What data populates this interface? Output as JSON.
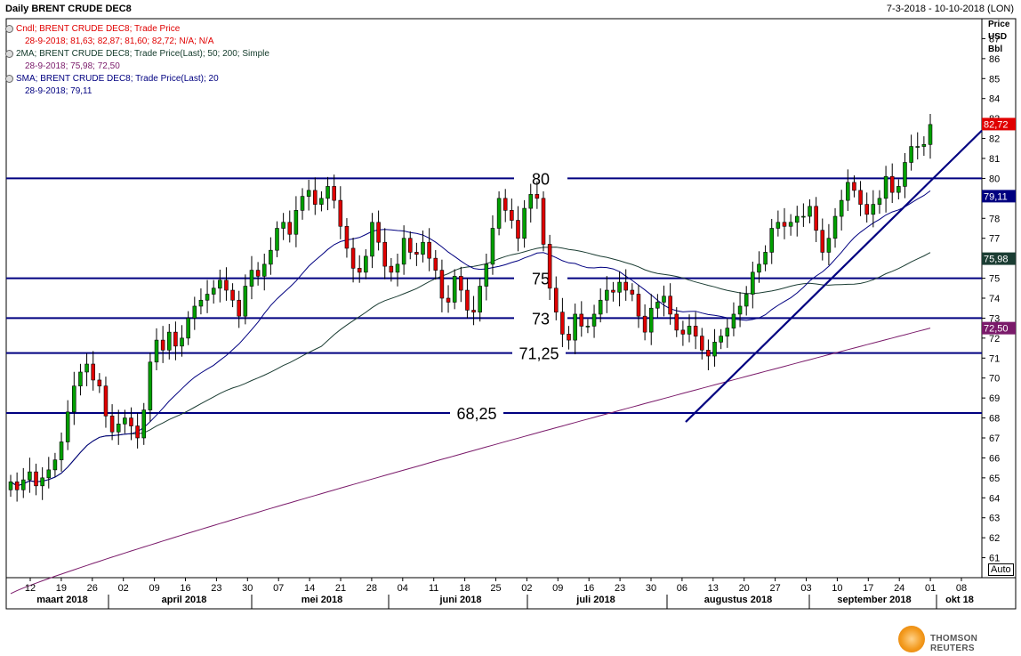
{
  "header": {
    "title": "Daily BRENT CRUDE DEC8",
    "date_range": "7-3-2018 - 10-10-2018 (LON)"
  },
  "legend": [
    {
      "label": "Cndl; BRENT CRUDE DEC8; Trade Price",
      "sub": "28-9-2018; 81,63; 82,87; 81,60; 82,72; N/A; N/A",
      "color": "#e00000"
    },
    {
      "label": "2MA; BRENT CRUDE DEC8; Trade Price(Last);  50; 200; Simple",
      "sub": "28-9-2018; 75,98; 72,50",
      "color": "#123a2a"
    },
    {
      "label": "SMA; BRENT CRUDE DEC8; Trade Price(Last);  20",
      "sub": "28-9-2018; 79,11",
      "color": "#000080"
    }
  ],
  "axis_unit": {
    "line1": "Price",
    "line2": "USD",
    "line3": "Bbl"
  },
  "auto_label": "Auto",
  "price_tags": [
    {
      "text": "82,72",
      "value": 82.72,
      "bg": "#e00000",
      "fg": "#ffffff"
    },
    {
      "text": "79,11",
      "value": 79.11,
      "bg": "#000080",
      "fg": "#ffffff"
    },
    {
      "text": "75,98",
      "value": 75.98,
      "bg": "#1b3d33",
      "fg": "#ffffff"
    },
    {
      "text": "72,50",
      "value": 72.5,
      "bg": "#7a1a6a",
      "fg": "#ffffff"
    }
  ],
  "logo": {
    "text": "THOMSON REUTERS"
  },
  "chart_data": {
    "type": "candlestick",
    "title": "Daily BRENT CRUDE DEC8",
    "ylabel": "Price USD Bbl",
    "ylim": [
      60,
      88
    ],
    "y_ticks": [
      61,
      62,
      63,
      64,
      65,
      66,
      67,
      68,
      69,
      70,
      71,
      72,
      73,
      74,
      75,
      76,
      77,
      78,
      79,
      80,
      81,
      82,
      83,
      84,
      85,
      86,
      87
    ],
    "x_ticks": [
      "12",
      "19",
      "26",
      "02",
      "09",
      "16",
      "23",
      "30",
      "07",
      "14",
      "21",
      "28",
      "04",
      "11",
      "18",
      "25",
      "02",
      "09",
      "16",
      "23",
      "30",
      "06",
      "13",
      "20",
      "27",
      "03",
      "10",
      "17",
      "24",
      "01",
      "08"
    ],
    "months": [
      "maart 2018",
      "april 2018",
      "mei 2018",
      "juni 2018",
      "juli 2018",
      "augustus 2018",
      "september 2018",
      "okt 18"
    ],
    "horizontal_levels": [
      {
        "value": 80,
        "label": "80"
      },
      {
        "value": 75,
        "label": "75"
      },
      {
        "value": 73,
        "label": "73"
      },
      {
        "value": 71.25,
        "label": "71,25"
      },
      {
        "value": 68.25,
        "label": "68,25"
      }
    ],
    "trendline": {
      "from": {
        "date": "2018-08-08",
        "value": 67.8
      },
      "to": {
        "date": "2018-10-10",
        "value": 82.4
      }
    },
    "close": [
      64.8,
      64.4,
      64.9,
      65.3,
      64.6,
      65.0,
      65.4,
      65.9,
      66.8,
      68.3,
      69.6,
      70.3,
      70.7,
      69.9,
      69.6,
      68.1,
      67.3,
      67.7,
      68.0,
      67.6,
      67.0,
      68.4,
      70.8,
      71.9,
      71.4,
      72.3,
      71.6,
      72.0,
      73.0,
      73.6,
      73.9,
      74.2,
      74.5,
      74.9,
      74.4,
      73.9,
      73.1,
      74.6,
      75.4,
      75.1,
      75.7,
      76.4,
      77.5,
      77.8,
      77.2,
      78.4,
      79.1,
      79.4,
      78.7,
      79.0,
      79.6,
      78.9,
      77.6,
      76.5,
      75.5,
      75.3,
      76.1,
      77.8,
      76.8,
      75.6,
      75.3,
      75.7,
      77.0,
      76.3,
      76.2,
      76.8,
      76.0,
      75.4,
      74.0,
      73.8,
      75.1,
      74.4,
      73.4,
      73.3,
      74.6,
      75.7,
      77.5,
      79.0,
      78.4,
      77.9,
      77.0,
      78.5,
      79.2,
      79.0,
      76.7,
      74.5,
      73.3,
      72.2,
      71.9,
      73.2,
      72.6,
      72.6,
      73.2,
      73.9,
      74.4,
      74.3,
      74.8,
      74.4,
      74.2,
      73.1,
      72.3,
      73.5,
      73.8,
      74.1,
      73.2,
      72.4,
      72.2,
      72.6,
      72.1,
      71.4,
      71.1,
      71.8,
      72.1,
      72.5,
      73.2,
      73.6,
      74.2,
      75.3,
      75.7,
      76.3,
      77.5,
      77.8,
      77.6,
      77.8,
      78.1,
      78.1,
      78.6,
      77.4,
      76.3,
      77.0,
      78.1,
      78.9,
      79.8,
      79.4,
      78.7,
      78.2,
      78.7,
      79.0,
      80.1,
      79.3,
      79.6,
      80.8,
      81.6,
      81.6,
      81.7,
      82.7
    ]
  }
}
